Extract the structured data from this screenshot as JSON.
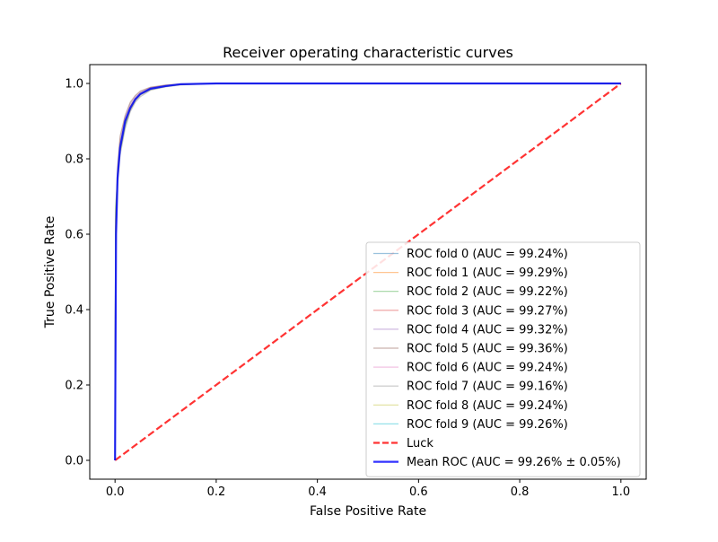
{
  "chart_data": {
    "type": "line",
    "title": "Receiver operating characteristic curves",
    "xlabel": "False Positive Rate",
    "ylabel": "True Positive Rate",
    "xlim": [
      -0.05,
      1.05
    ],
    "ylim": [
      -0.05,
      1.05
    ],
    "xticks": [
      0.0,
      0.2,
      0.4,
      0.6,
      0.8,
      1.0
    ],
    "yticks": [
      0.0,
      0.2,
      0.4,
      0.6,
      0.8,
      1.0
    ],
    "xtick_labels": [
      "0.0",
      "0.2",
      "0.4",
      "0.6",
      "0.8",
      "1.0"
    ],
    "ytick_labels": [
      "0.0",
      "0.2",
      "0.4",
      "0.6",
      "0.8",
      "1.0"
    ],
    "grid": false,
    "legend_position": "lower-right",
    "series": [
      {
        "name": "ROC fold 0 (AUC = 99.24%)",
        "color": "#1f77b4",
        "style": "fold",
        "x": [
          0,
          0.001,
          0.005,
          0.01,
          0.02,
          0.03,
          0.04,
          0.05,
          0.07,
          0.1,
          0.13,
          0.2,
          1.0
        ],
        "y": [
          0,
          0.55,
          0.74,
          0.82,
          0.89,
          0.93,
          0.955,
          0.97,
          0.985,
          0.993,
          0.998,
          1.0,
          1.0
        ]
      },
      {
        "name": "ROC fold 1 (AUC = 99.29%)",
        "color": "#ff7f0e",
        "style": "fold",
        "x": [
          0,
          0.001,
          0.005,
          0.01,
          0.02,
          0.03,
          0.04,
          0.05,
          0.07,
          0.1,
          0.13,
          0.2,
          1.0
        ],
        "y": [
          0,
          0.6,
          0.76,
          0.84,
          0.9,
          0.94,
          0.96,
          0.975,
          0.988,
          0.994,
          0.998,
          1.0,
          1.0
        ]
      },
      {
        "name": "ROC fold 2 (AUC = 99.22%)",
        "color": "#2ca02c",
        "style": "fold",
        "x": [
          0,
          0.001,
          0.005,
          0.01,
          0.02,
          0.03,
          0.04,
          0.05,
          0.07,
          0.1,
          0.13,
          0.2,
          1.0
        ],
        "y": [
          0,
          0.67,
          0.75,
          0.82,
          0.89,
          0.93,
          0.955,
          0.97,
          0.984,
          0.992,
          0.997,
          1.0,
          1.0
        ]
      },
      {
        "name": "ROC fold 3 (AUC = 99.27%)",
        "color": "#d62728",
        "style": "fold",
        "x": [
          0,
          0.001,
          0.005,
          0.01,
          0.02,
          0.03,
          0.04,
          0.05,
          0.07,
          0.1,
          0.13,
          0.2,
          1.0
        ],
        "y": [
          0,
          0.58,
          0.75,
          0.83,
          0.9,
          0.935,
          0.96,
          0.972,
          0.986,
          0.993,
          0.998,
          1.0,
          1.0
        ]
      },
      {
        "name": "ROC fold 4 (AUC = 99.32%)",
        "color": "#9467bd",
        "style": "fold",
        "x": [
          0,
          0.001,
          0.005,
          0.01,
          0.02,
          0.03,
          0.04,
          0.05,
          0.07,
          0.1,
          0.13,
          0.2,
          1.0
        ],
        "y": [
          0,
          0.62,
          0.77,
          0.85,
          0.91,
          0.945,
          0.965,
          0.977,
          0.989,
          0.995,
          0.998,
          1.0,
          1.0
        ]
      },
      {
        "name": "ROC fold 5 (AUC = 99.36%)",
        "color": "#8c564b",
        "style": "fold",
        "x": [
          0,
          0.001,
          0.005,
          0.01,
          0.02,
          0.03,
          0.04,
          0.05,
          0.07,
          0.1,
          0.13,
          0.2,
          1.0
        ],
        "y": [
          0,
          0.64,
          0.78,
          0.86,
          0.915,
          0.95,
          0.968,
          0.98,
          0.99,
          0.996,
          0.999,
          1.0,
          1.0
        ]
      },
      {
        "name": "ROC fold 6 (AUC = 99.24%)",
        "color": "#e377c2",
        "style": "fold",
        "x": [
          0,
          0.001,
          0.005,
          0.01,
          0.02,
          0.03,
          0.04,
          0.05,
          0.07,
          0.1,
          0.13,
          0.2,
          1.0
        ],
        "y": [
          0,
          0.57,
          0.75,
          0.83,
          0.895,
          0.93,
          0.955,
          0.97,
          0.985,
          0.993,
          0.997,
          1.0,
          1.0
        ]
      },
      {
        "name": "ROC fold 7 (AUC = 99.16%)",
        "color": "#7f7f7f",
        "style": "fold",
        "x": [
          0,
          0.001,
          0.005,
          0.01,
          0.02,
          0.03,
          0.04,
          0.05,
          0.07,
          0.1,
          0.13,
          0.2,
          1.0
        ],
        "y": [
          0,
          0.55,
          0.73,
          0.81,
          0.88,
          0.925,
          0.95,
          0.965,
          0.982,
          0.991,
          0.996,
          1.0,
          1.0
        ]
      },
      {
        "name": "ROC fold 8 (AUC = 99.24%)",
        "color": "#bcbd22",
        "style": "fold",
        "x": [
          0,
          0.001,
          0.005,
          0.01,
          0.02,
          0.03,
          0.04,
          0.05,
          0.07,
          0.1,
          0.13,
          0.2,
          1.0
        ],
        "y": [
          0,
          0.6,
          0.75,
          0.83,
          0.895,
          0.932,
          0.956,
          0.97,
          0.985,
          0.993,
          0.997,
          1.0,
          1.0
        ]
      },
      {
        "name": "ROC fold 9 (AUC = 99.26%)",
        "color": "#17becf",
        "style": "fold",
        "x": [
          0,
          0.001,
          0.005,
          0.01,
          0.02,
          0.03,
          0.04,
          0.05,
          0.07,
          0.1,
          0.13,
          0.2,
          1.0
        ],
        "y": [
          0,
          0.6,
          0.76,
          0.835,
          0.9,
          0.935,
          0.958,
          0.972,
          0.986,
          0.993,
          0.998,
          1.0,
          1.0
        ]
      },
      {
        "name": "Luck",
        "color": "#ff0000",
        "style": "luck",
        "x": [
          0,
          1
        ],
        "y": [
          0,
          1
        ]
      },
      {
        "name": "Mean ROC (AUC = 99.26% ± 0.05%)",
        "color": "#0000ff",
        "style": "mean",
        "x": [
          0,
          0.002,
          0.005,
          0.01,
          0.02,
          0.03,
          0.04,
          0.05,
          0.07,
          0.1,
          0.13,
          0.2,
          1.0
        ],
        "y": [
          0,
          0.6,
          0.75,
          0.83,
          0.9,
          0.935,
          0.958,
          0.972,
          0.986,
          0.993,
          0.998,
          1.0,
          1.0
        ]
      }
    ]
  }
}
